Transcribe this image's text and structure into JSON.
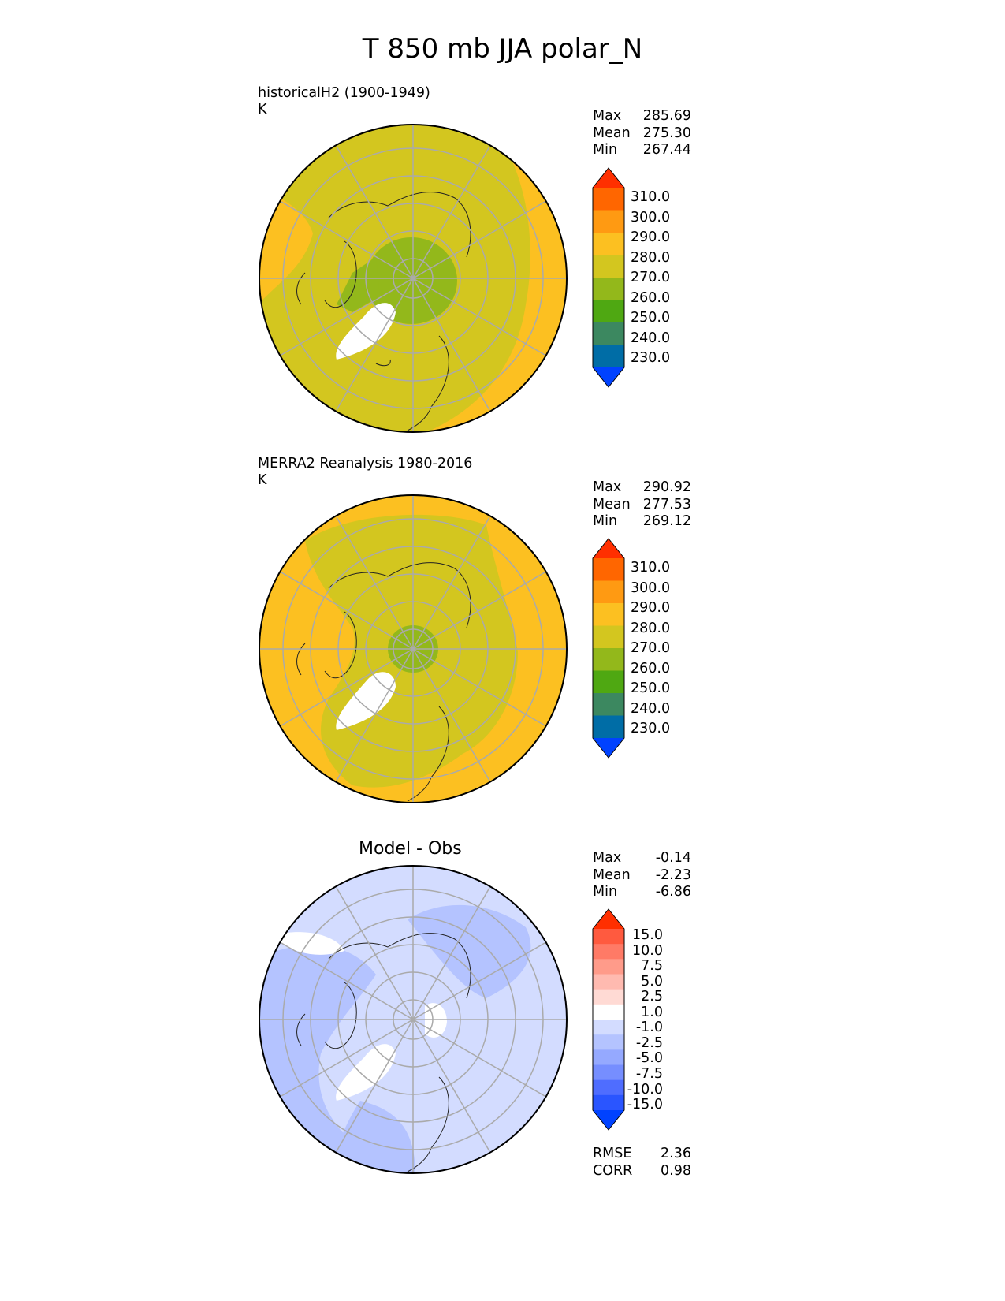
{
  "title": "T 850 mb JJA polar_N",
  "panels": [
    {
      "name": "model",
      "title": "historicalH2 (1900-1949)",
      "units": "K",
      "stats": [
        {
          "label": "Max",
          "value": "285.69"
        },
        {
          "label": "Mean",
          "value": "275.30"
        },
        {
          "label": "Min",
          "value": "267.44"
        }
      ]
    },
    {
      "name": "reference",
      "title": "MERRA2 Reanalysis 1980-2016",
      "units": "K",
      "stats": [
        {
          "label": "Max",
          "value": "290.92"
        },
        {
          "label": "Mean",
          "value": "277.53"
        },
        {
          "label": "Min",
          "value": "269.12"
        }
      ]
    },
    {
      "name": "difference",
      "title": "Model - Obs",
      "stats": [
        {
          "label": "Max",
          "value": "-0.14"
        },
        {
          "label": "Mean",
          "value": "-2.23"
        },
        {
          "label": "Min",
          "value": "-6.86"
        }
      ],
      "metrics": [
        {
          "label": "RMSE",
          "value": "2.36"
        },
        {
          "label": "CORR",
          "value": "0.98"
        }
      ]
    }
  ],
  "colorbars": {
    "temperature": {
      "ticks": [
        "310.0",
        "300.0",
        "290.0",
        "280.0",
        "270.0",
        "260.0",
        "250.0",
        "240.0",
        "230.0"
      ],
      "colors": [
        "#ff2f00",
        "#ff6600",
        "#ff9a12",
        "#fcc021",
        "#d3c61f",
        "#93b81b",
        "#4fa812",
        "#3c8860",
        "#006da6",
        "#0042ff"
      ]
    },
    "difference": {
      "ticks": [
        "15.0",
        "10.0",
        "7.5",
        "5.0",
        "2.5",
        "1.0",
        "-1.0",
        "-2.5",
        "-5.0",
        "-7.5",
        "-10.0",
        "-15.0"
      ],
      "colors": [
        "#ff2f00",
        "#ff5a3f",
        "#ff7a66",
        "#ff9b8a",
        "#ffbab0",
        "#ffdad4",
        "#ffffff",
        "#d3dcff",
        "#b4c3ff",
        "#95a9ff",
        "#768eff",
        "#4f6dff",
        "#2a55ff",
        "#0042ff"
      ]
    }
  },
  "map_colors": {
    "model": {
      "background": "#d3c61f",
      "rim": "#fcc021",
      "core": "#93b81b",
      "greenland": "#ffffff"
    },
    "reference": {
      "background": "#d3c61f",
      "rim": "#fcc021",
      "core": "#93b81b",
      "greenland": "#ffffff"
    },
    "difference": {
      "background": "#d3dcff",
      "mid": "#b4c3ff",
      "greenland": "#ffffff"
    }
  }
}
